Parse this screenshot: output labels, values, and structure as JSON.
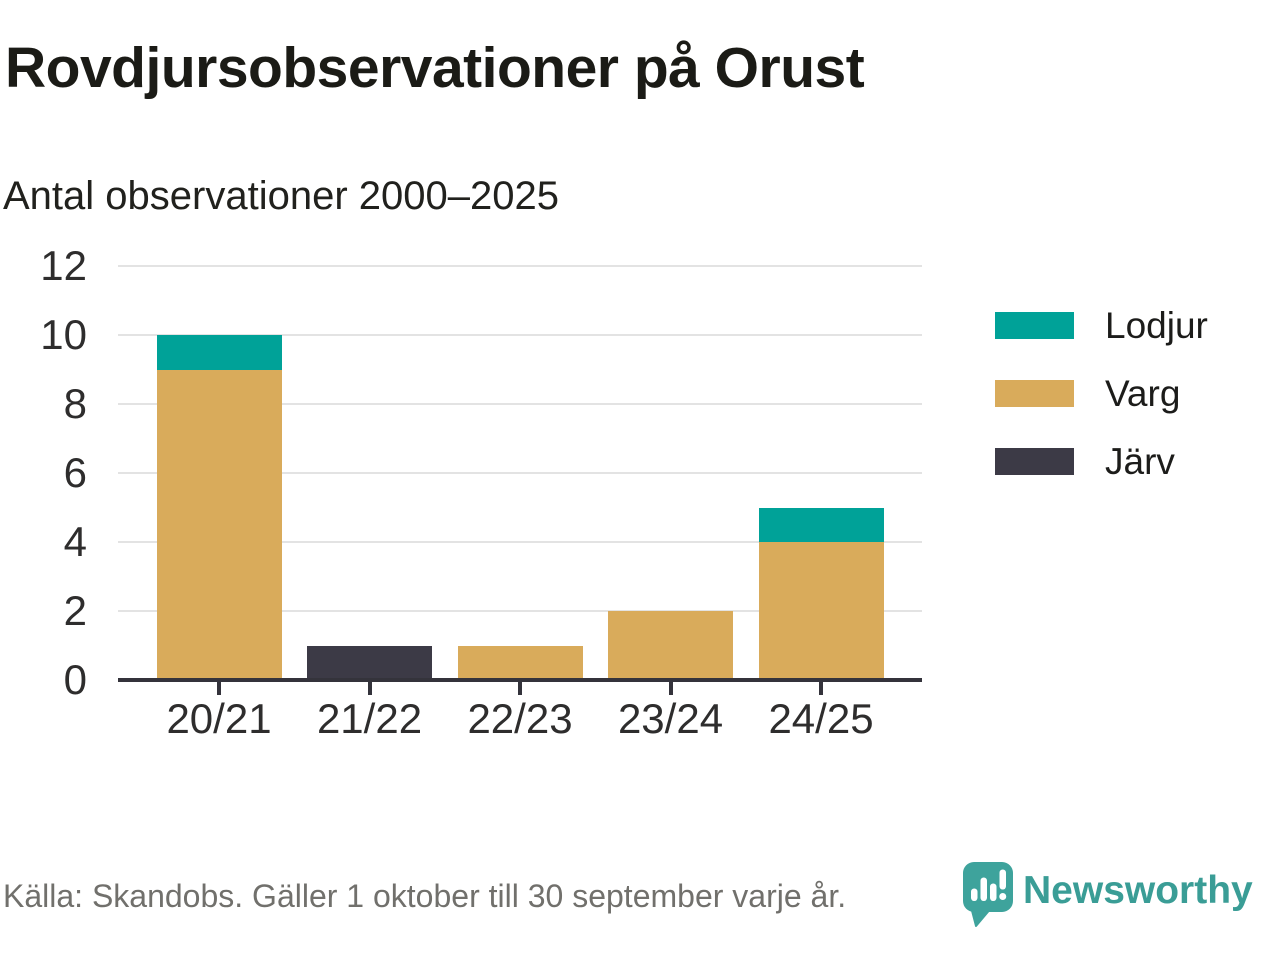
{
  "chart_data": {
    "type": "bar",
    "stacked": true,
    "title": "Rovdjursobservationer på Orust",
    "subtitle": "Antal observationer 2000–2025",
    "categories": [
      "20/21",
      "21/22",
      "22/23",
      "23/24",
      "24/25"
    ],
    "series": [
      {
        "name": "Lodjur",
        "color": "#00a298",
        "values": [
          1,
          0,
          0,
          0,
          1
        ]
      },
      {
        "name": "Varg",
        "color": "#d9ab5b",
        "values": [
          9,
          0,
          1,
          2,
          4
        ]
      },
      {
        "name": "Järv",
        "color": "#3c3a46",
        "values": [
          0,
          1,
          0,
          0,
          0
        ]
      }
    ],
    "stack_order": [
      "Järv",
      "Varg",
      "Lodjur"
    ],
    "totals": [
      10,
      1,
      1,
      2,
      5
    ],
    "y_ticks": [
      0,
      2,
      4,
      6,
      8,
      10,
      12
    ],
    "ylim": [
      0,
      12
    ],
    "xlabel": "",
    "ylabel": "",
    "grid": true,
    "legend_position": "right"
  },
  "footer": {
    "source": "Källa: Skandobs. Gäller 1 oktober till 30 september varje år.",
    "brand": "Newsworthy",
    "brand_color": "#3a9d96"
  },
  "icons": {
    "brand_logo": "newsworthy-speech-bubble-bar-chart"
  }
}
